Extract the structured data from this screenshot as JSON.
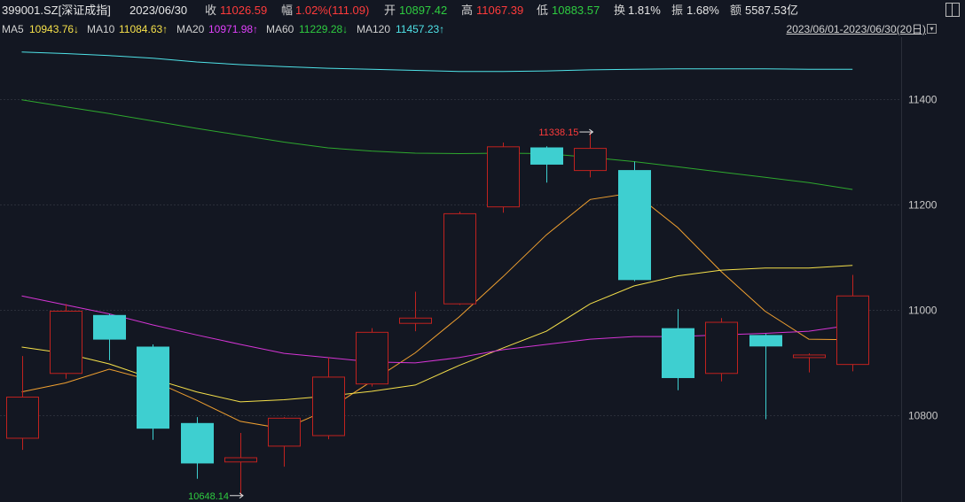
{
  "header": {
    "code": "399001.SZ[深证成指]",
    "date": "2023/06/30",
    "close_label": "收",
    "close": "11026.59",
    "chg_label": "幅",
    "chg": "1.02%(111.09)",
    "open_label": "开",
    "open": "10897.42",
    "high_label": "高",
    "high": "11067.39",
    "low_label": "低",
    "low": "10883.57",
    "turnover_label": "换",
    "turnover": "1.81%",
    "amplitude_label": "振",
    "amplitude": "1.68%",
    "amount_label": "额",
    "amount": "5587.53亿"
  },
  "ma_row": {
    "ma5_label": "MA5",
    "ma5": "10943.76↓",
    "ma10_label": "MA10",
    "ma10": "11084.63↑",
    "ma20_label": "MA20",
    "ma20": "10971.98↑",
    "ma60_label": "MA60",
    "ma60": "11229.28↓",
    "ma120_label": "MA120",
    "ma120": "11457.23↑",
    "range": "2023/06/01-2023/06/30(20日)"
  },
  "colors": {
    "up": "#c0221f",
    "down": "#3ecfd0",
    "ma5": "#f0a030",
    "ma10": "#f5e04a",
    "ma20": "#d535d5",
    "ma60": "#2ea82e",
    "ma120": "#4fe3e8",
    "grid": "#2a2e39",
    "axis_text": "#c8c8c8"
  },
  "chart_data": {
    "type": "candlestick",
    "y_ticks": [
      10800,
      11000,
      11200,
      11400
    ],
    "ylim": [
      10636,
      11518
    ],
    "grid": true,
    "candles": [
      {
        "o": 10757,
        "c": 10835,
        "h": 10913,
        "l": 10735
      },
      {
        "o": 10880,
        "c": 10998,
        "h": 11012,
        "l": 10870
      },
      {
        "o": 10990,
        "c": 10945,
        "h": 10993,
        "l": 10905
      },
      {
        "o": 10930,
        "c": 10776,
        "h": 10935,
        "l": 10754
      },
      {
        "o": 10785,
        "c": 10710,
        "h": 10797,
        "l": 10680
      },
      {
        "o": 10712,
        "c": 10720,
        "h": 10767,
        "l": 10648
      },
      {
        "o": 10742,
        "c": 10795,
        "h": 10797,
        "l": 10703
      },
      {
        "o": 10762,
        "c": 10873,
        "h": 10910,
        "l": 10755
      },
      {
        "o": 10860,
        "c": 10958,
        "h": 10966,
        "l": 10855
      },
      {
        "o": 10975,
        "c": 10985,
        "h": 11035,
        "l": 10960
      },
      {
        "o": 11012,
        "c": 11183,
        "h": 11187,
        "l": 11010
      },
      {
        "o": 11196,
        "c": 11310,
        "h": 11318,
        "l": 11185
      },
      {
        "o": 11308,
        "c": 11277,
        "h": 11311,
        "l": 11242
      },
      {
        "o": 11265,
        "c": 11307,
        "h": 11338,
        "l": 11252
      },
      {
        "o": 11265,
        "c": 11058,
        "h": 11282,
        "l": 11055
      },
      {
        "o": 10965,
        "c": 10872,
        "h": 11002,
        "l": 10848
      },
      {
        "o": 10880,
        "c": 10977,
        "h": 10985,
        "l": 10865
      },
      {
        "o": 10952,
        "c": 10932,
        "h": 10955,
        "l": 10793
      },
      {
        "o": 10910,
        "c": 10915,
        "h": 10918,
        "l": 10882
      },
      {
        "o": 10897,
        "c": 11027,
        "h": 11067,
        "l": 10884
      }
    ],
    "ma": {
      "MA5": [
        10845,
        10862,
        10888,
        10866,
        10829,
        10789,
        10775,
        10811,
        10865,
        10919,
        10987,
        11063,
        11143,
        11210,
        11223,
        11157,
        11073,
        10998,
        10945,
        10944
      ],
      "MA10": [
        10930,
        10918,
        10898,
        10870,
        10845,
        10826,
        10830,
        10837,
        10846,
        10858,
        10895,
        10928,
        10960,
        11012,
        11046,
        11065,
        11076,
        11080,
        11080,
        11085
      ],
      "MA20": [
        11027,
        11010,
        10993,
        10972,
        10953,
        10935,
        10918,
        10910,
        10902,
        10900,
        10910,
        10925,
        10935,
        10945,
        10950,
        10950,
        10953,
        10956,
        10960,
        10972
      ],
      "MA60": [
        11399,
        11386,
        11373,
        11359,
        11345,
        11332,
        11319,
        11308,
        11302,
        11298,
        11297,
        11298,
        11297,
        11290,
        11282,
        11272,
        11262,
        11252,
        11242,
        11229
      ],
      "MA120": [
        11490,
        11487,
        11483,
        11478,
        11471,
        11466,
        11462,
        11459,
        11457,
        11455,
        11453,
        11453,
        11454,
        11456,
        11457,
        11458,
        11458,
        11458,
        11457,
        11457
      ]
    },
    "annotations": [
      {
        "text": "11338.15",
        "index": 13,
        "value": 11338.15,
        "color": "#ff3b3b"
      },
      {
        "text": "10648.14",
        "index": 5,
        "value": 10648.14,
        "color": "#2ecc40"
      }
    ]
  }
}
